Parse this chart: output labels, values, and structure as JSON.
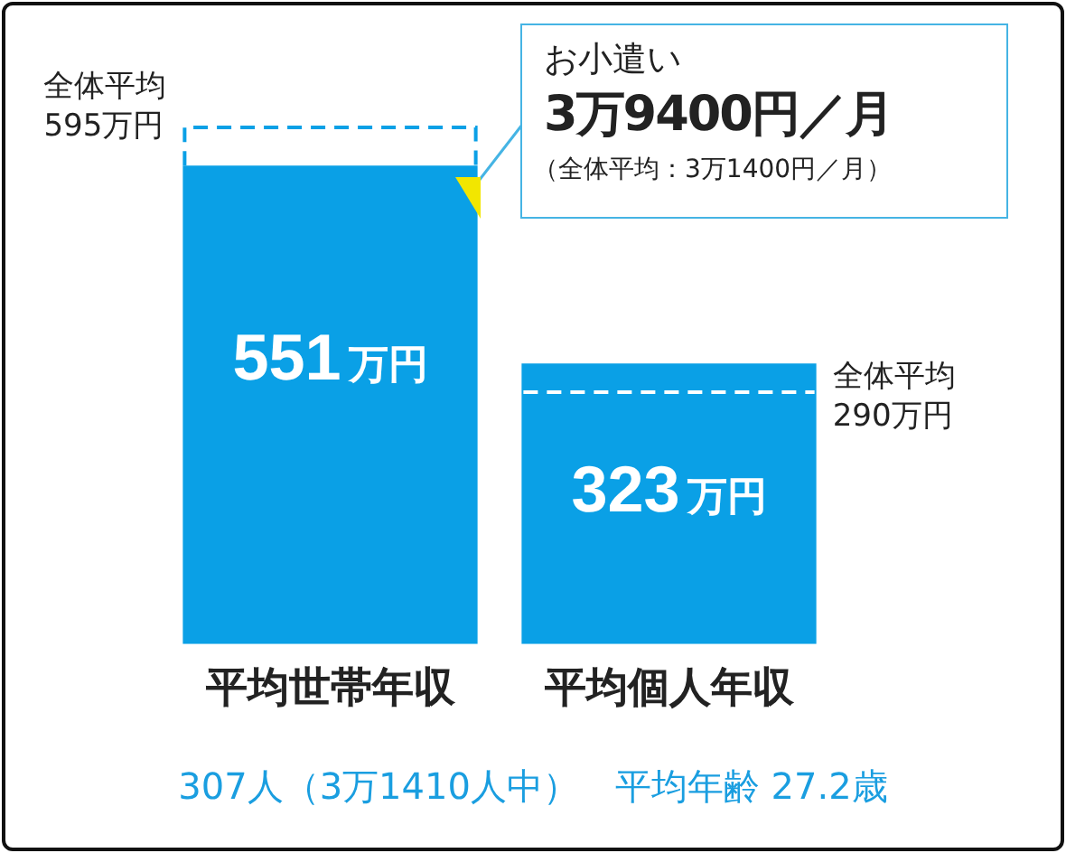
{
  "chart_data": {
    "type": "bar",
    "categories": [
      "平均世帯年収",
      "平均個人年収"
    ],
    "series": [
      {
        "color": "#0aa0e6",
        "values": [
          551,
          323
        ],
        "value_labels": [
          "551万円",
          "323万円"
        ]
      }
    ],
    "ref_lines": [
      {
        "axis": "y",
        "value": 595,
        "label": "全体平均\n595万円",
        "color": "#0aa0e6",
        "line_style": "dashed"
      },
      {
        "axis": "y",
        "value": 290,
        "label": "全体平均\n290万円",
        "color": "#ffffff",
        "line_style": "dashed"
      }
    ],
    "annotations": [
      "お小遣い",
      "3万9400円／月",
      "（全体平均：3万1400円／月）",
      "307人（3万1410人中）　平均年齢 27.2歳"
    ],
    "legend": false,
    "grid": false
  }
}
